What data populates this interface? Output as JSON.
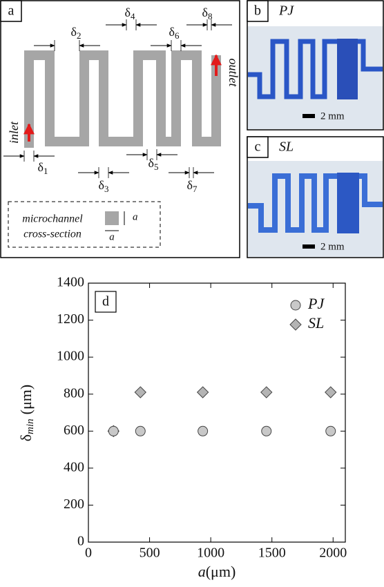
{
  "panel_a": {
    "label": "a",
    "inlet": "inlet",
    "outlet": "outlet",
    "deltas": [
      {
        "symbol": "δ",
        "index": "1"
      },
      {
        "symbol": "δ",
        "index": "2"
      },
      {
        "symbol": "δ",
        "index": "3"
      },
      {
        "symbol": "δ",
        "index": "4"
      },
      {
        "symbol": "δ",
        "index": "5"
      },
      {
        "symbol": "δ",
        "index": "6"
      },
      {
        "symbol": "δ",
        "index": "7"
      },
      {
        "symbol": "δ",
        "index": "8"
      }
    ],
    "cross_section": {
      "line1": "microchannel",
      "line2": "cross-section",
      "side_label": "a",
      "bottom_label": "a"
    }
  },
  "panel_b": {
    "label": "b",
    "title": "PJ",
    "scale": "2 mm"
  },
  "panel_c": {
    "label": "c",
    "title": "SL",
    "scale": "2 mm"
  },
  "chart_data": {
    "type": "scatter",
    "label": "d",
    "xlabel_symbol": "a",
    "xlabel_unit": "(μm)",
    "ylabel_symbol": "δ",
    "ylabel_sub": "min",
    "ylabel_unit": "(μm)",
    "xlim": [
      0,
      2100
    ],
    "ylim": [
      0,
      1400
    ],
    "xticks": [
      0,
      500,
      1000,
      1500,
      2000
    ],
    "yticks": [
      0,
      200,
      400,
      600,
      800,
      1000,
      1200,
      1400
    ],
    "legend": "upper right",
    "series": [
      {
        "name": "PJ",
        "marker": "circle",
        "color": "#c8c8c8",
        "x": [
          205,
          425,
          935,
          1455,
          1980
        ],
        "values": [
          600,
          600,
          600,
          600,
          600
        ]
      },
      {
        "name": "SL",
        "marker": "diamond",
        "color": "#b4b4b4",
        "x": [
          205,
          425,
          935,
          1455,
          1980
        ],
        "values": [
          600,
          810,
          810,
          810,
          810
        ]
      }
    ]
  }
}
